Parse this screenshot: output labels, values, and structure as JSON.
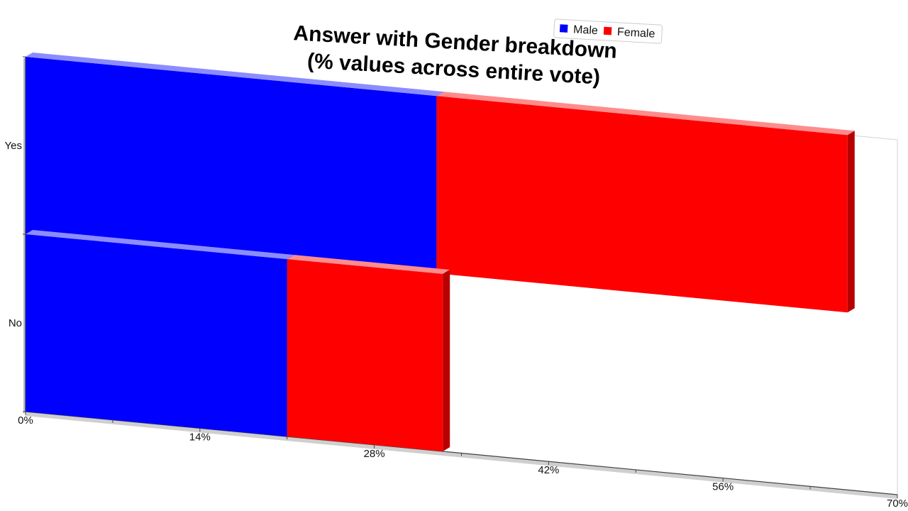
{
  "chart_data": {
    "type": "bar",
    "orientation": "horizontal",
    "stacked": true,
    "three_d": true,
    "title": "Answer with Gender breakdown\n(% values across entire vote)",
    "title_lines": [
      "Answer with Gender breakdown",
      "(% values across entire vote)"
    ],
    "categories": [
      "Yes",
      "No"
    ],
    "series": [
      {
        "name": "Male",
        "color": "#0000ff",
        "values": [
          33,
          21
        ]
      },
      {
        "name": "Female",
        "color": "#ff0000",
        "values": [
          33,
          12.5
        ]
      }
    ],
    "xlim": [
      0,
      70
    ],
    "x_ticks": [
      "0%",
      "14%",
      "28%",
      "42%",
      "56%",
      "70%"
    ],
    "x_tick_values": [
      0,
      14,
      28,
      42,
      56,
      70
    ],
    "xlabel": "",
    "ylabel": "",
    "grid": false,
    "legend_position": "top-right"
  }
}
